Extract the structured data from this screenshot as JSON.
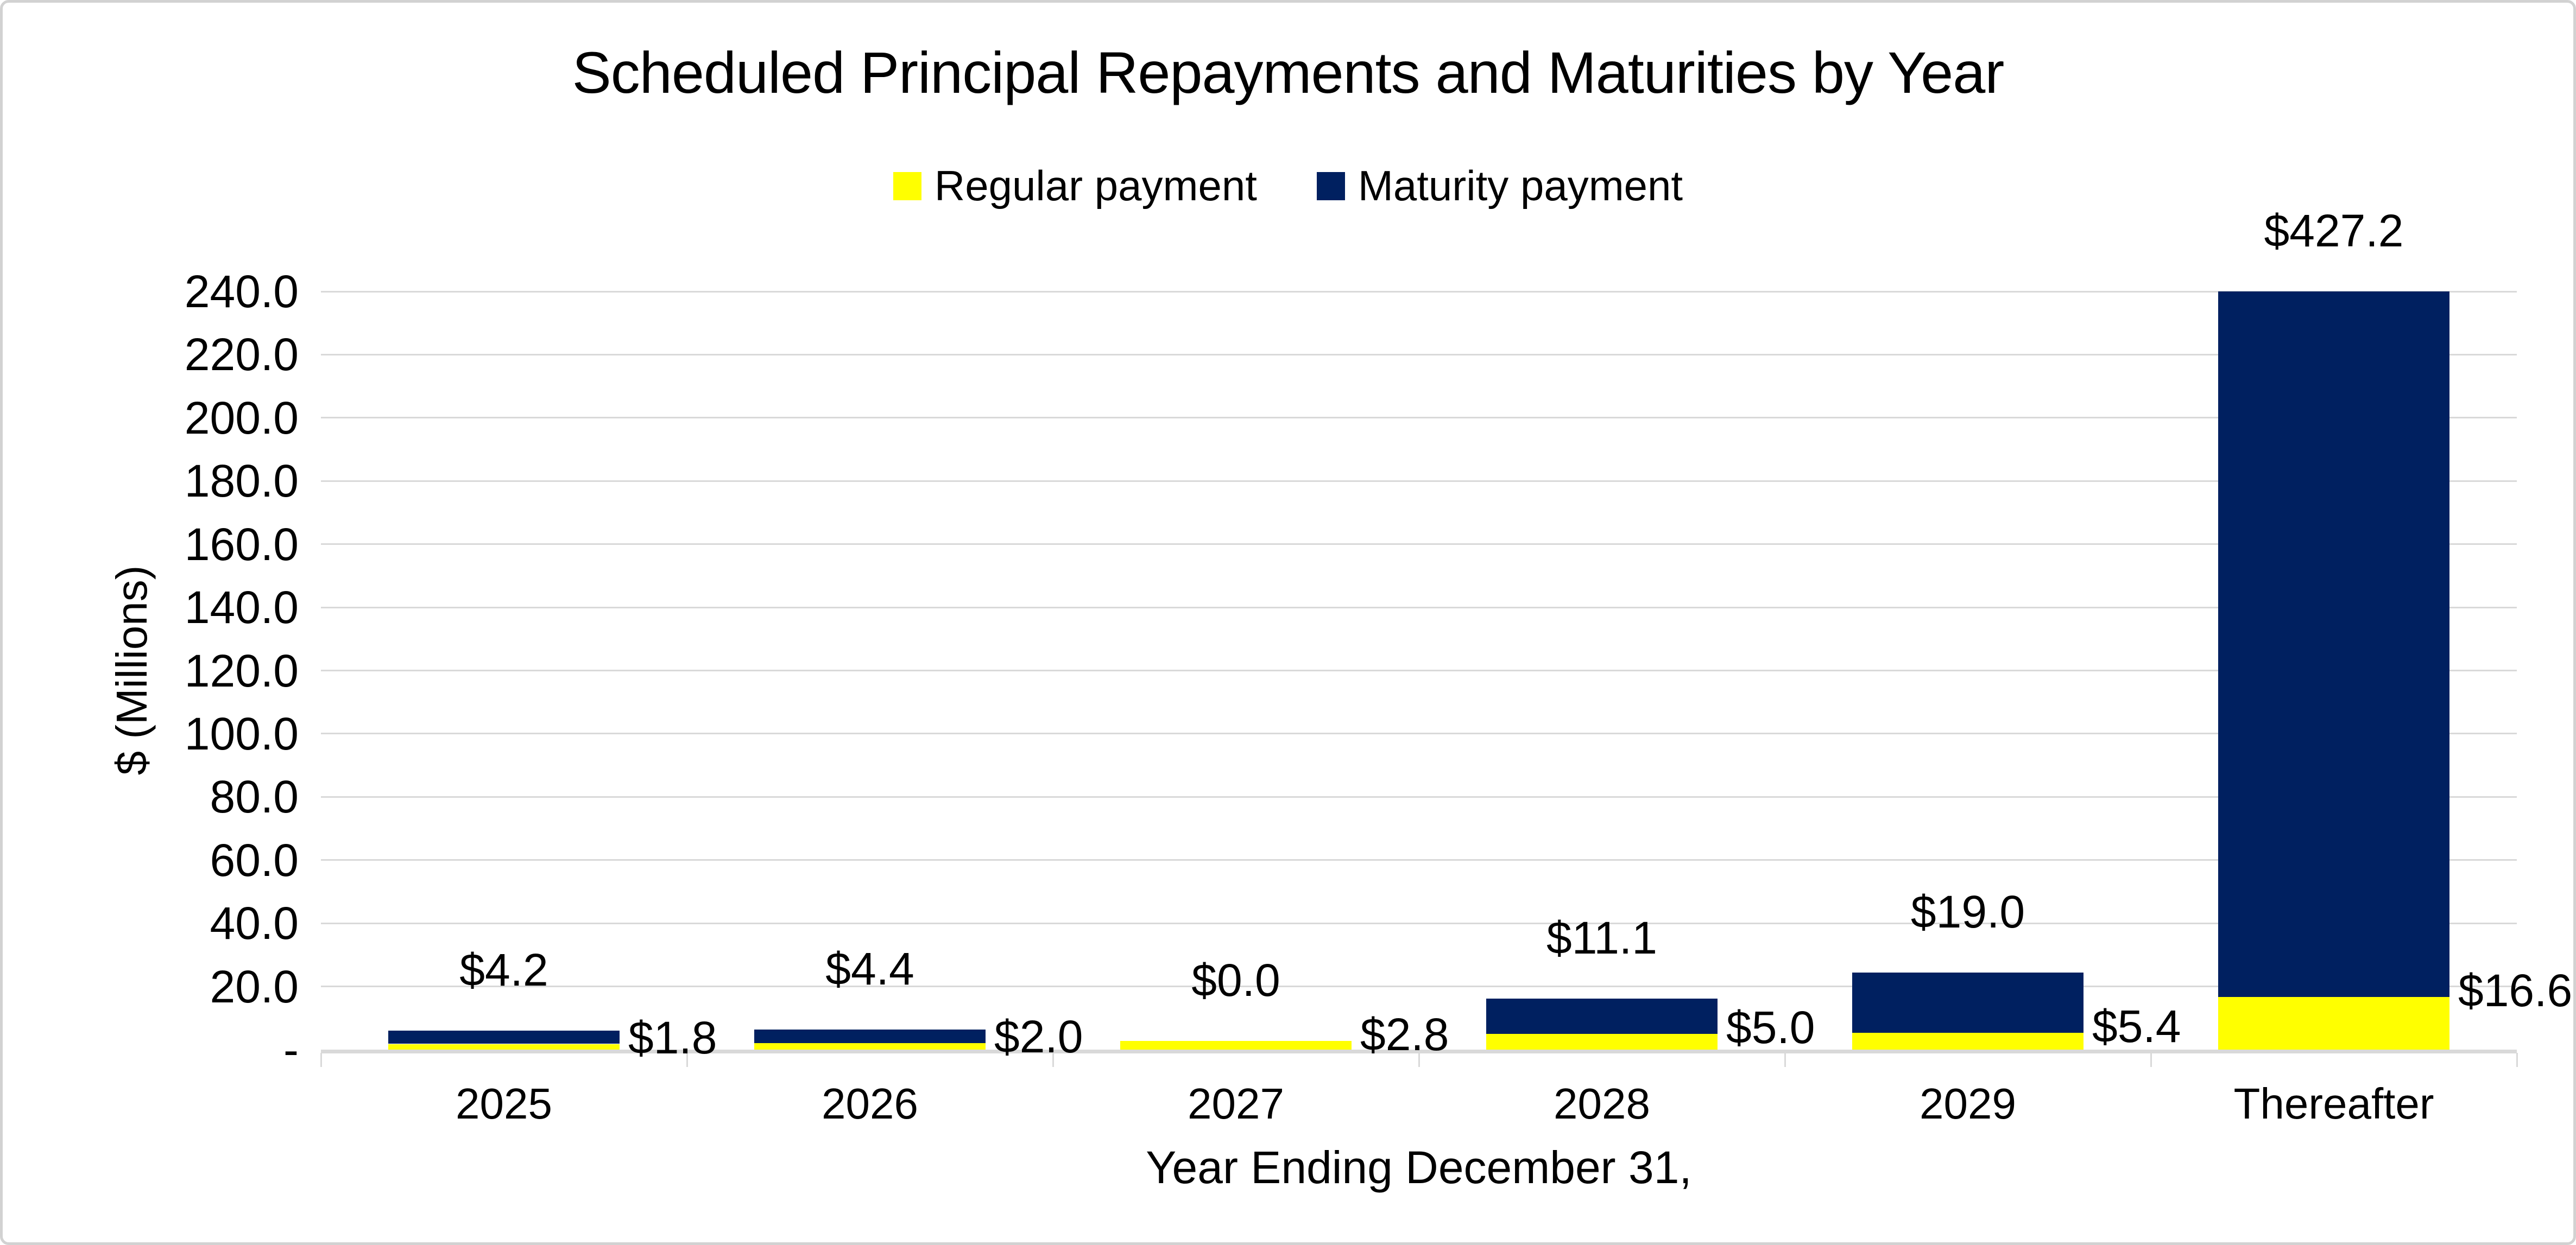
{
  "chart_data": {
    "type": "bar",
    "subtype": "stacked-column",
    "title": "Scheduled Principal Repayments and Maturities by Year",
    "xlabel": "Year Ending December 31,",
    "ylabel": "$ (Millions)",
    "ylim": [
      0,
      240
    ],
    "ytick_step": 20,
    "ytick_labels_bottom_to_top": [
      "-",
      "20.0",
      "40.0",
      "60.0",
      "80.0",
      "100.0",
      "120.0",
      "140.0",
      "160.0",
      "180.0",
      "200.0",
      "220.0",
      "240.0"
    ],
    "categories": [
      "2025",
      "2026",
      "2027",
      "2028",
      "2029",
      "Thereafter"
    ],
    "series": [
      {
        "name": "Regular payment",
        "color": "#FFFF00",
        "values": [
          1.8,
          2.0,
          2.8,
          5.0,
          5.4,
          16.6
        ],
        "data_labels": [
          "$1.8",
          "$2.0",
          "$2.8",
          "$5.0",
          "$5.4",
          "$16.6"
        ],
        "label_position": "right-of-bar"
      },
      {
        "name": "Maturity payment",
        "color": "#002060",
        "values": [
          4.2,
          4.4,
          0.0,
          11.1,
          19.0,
          427.2
        ],
        "data_labels": [
          "$4.2",
          "$4.4",
          "$0.0",
          "$11.1",
          "$19.0",
          "$427.2"
        ],
        "label_position": "above-bar"
      }
    ],
    "clipped_at_axis_max": [
      false,
      false,
      false,
      false,
      false,
      true
    ],
    "legend_position": "top",
    "grid": "horizontal",
    "gridline_color": "#D9D9D9",
    "axis_line_color": "#D9D9D9"
  }
}
